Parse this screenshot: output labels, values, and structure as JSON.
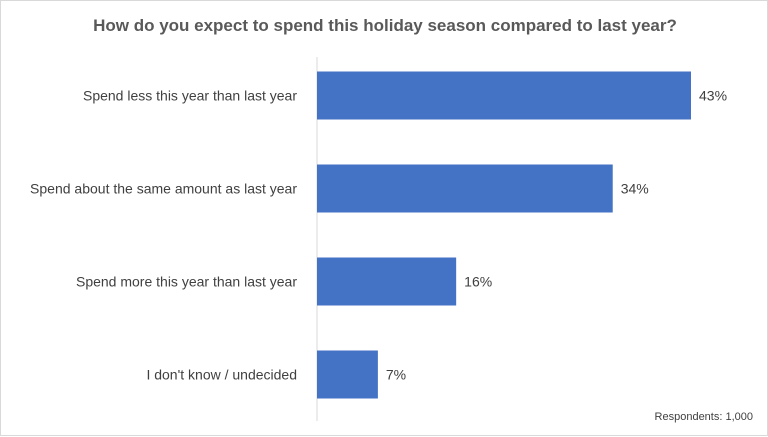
{
  "chart_data": {
    "type": "bar",
    "orientation": "horizontal",
    "title": "How do you expect to spend this holiday season compared to last year?",
    "categories": [
      "Spend less this year than last year",
      "Spend about the same amount as last year",
      "Spend more this year than last year",
      "I don't know / undecided"
    ],
    "values": [
      43,
      34,
      16,
      7
    ],
    "value_labels": [
      "43%",
      "34%",
      "16%",
      "7%"
    ],
    "unit": "%",
    "xlim": [
      0,
      47
    ],
    "grid": false,
    "legend": "none",
    "bar_color": "#4472C4",
    "footnote": "Respondents: 1,000"
  }
}
